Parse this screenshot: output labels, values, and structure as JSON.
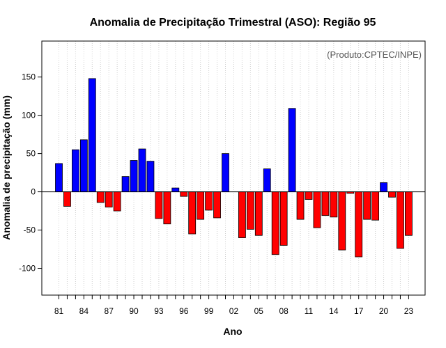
{
  "chart_data": {
    "type": "bar",
    "title": "Anomalia de Precipitação Trimestral (ASO): Região 95",
    "annotation": "(Produto:CPTEC/INPE)",
    "xlabel": "Ano",
    "ylabel": "Anomalia de precipitação (mm)",
    "ylim": [
      -135,
      197
    ],
    "y_ticks": [
      -100,
      -50,
      0,
      50,
      100,
      150
    ],
    "x_tick_labels": [
      "81",
      "84",
      "87",
      "90",
      "93",
      "96",
      "99",
      "02",
      "05",
      "08",
      "11",
      "14",
      "17",
      "20",
      "23"
    ],
    "grid": "vertical dotted lines",
    "colors": {
      "positive": "#0000ff",
      "negative": "#ff0000",
      "bar_edge": "#000000",
      "zero_line": "#000000"
    },
    "categories": [
      "1981",
      "1982",
      "1983",
      "1984",
      "1985",
      "1986",
      "1987",
      "1988",
      "1989",
      "1990",
      "1991",
      "1992",
      "1993",
      "1994",
      "1995",
      "1996",
      "1997",
      "1998",
      "1999",
      "2000",
      "2001",
      "2002",
      "2003",
      "2004",
      "2005",
      "2006",
      "2007",
      "2008",
      "2009",
      "2010",
      "2011",
      "2012",
      "2013",
      "2014",
      "2015",
      "2016",
      "2017",
      "2018",
      "2019",
      "2020",
      "2021",
      "2022",
      "2023"
    ],
    "values": [
      37,
      -19,
      55,
      68,
      148,
      -14,
      -20,
      -25,
      20,
      41,
      56,
      40,
      -35,
      -42,
      5,
      -6,
      -55,
      -36,
      -24,
      -34,
      50,
      0,
      -60,
      -49,
      -57,
      30,
      -82,
      -70,
      109,
      -36,
      -10,
      -47,
      -31,
      -33,
      -76,
      -2,
      -85,
      -36,
      -37,
      12,
      -7,
      -74,
      -57
    ]
  }
}
